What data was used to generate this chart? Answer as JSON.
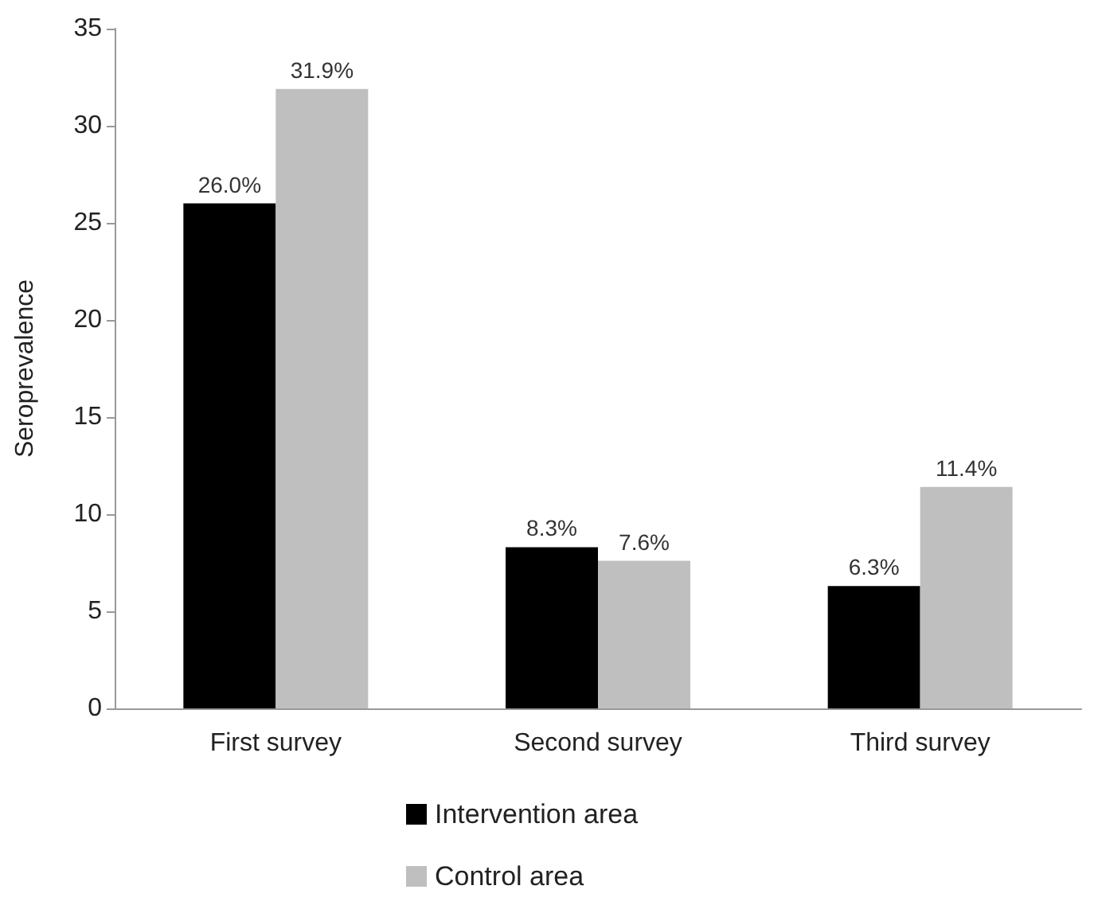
{
  "chart_data": {
    "type": "bar",
    "ylabel": "Seroprevalence",
    "categories": [
      "First survey",
      "Second survey",
      "Third survey"
    ],
    "series": [
      {
        "name": "Intervention area",
        "color": "#000000",
        "values": [
          26.0,
          8.3,
          6.3
        ],
        "value_labels": [
          "26.0%",
          "8.3%",
          "6.3%"
        ]
      },
      {
        "name": "Control area",
        "color": "#bfbfbf",
        "values": [
          31.9,
          7.6,
          11.4
        ],
        "value_labels": [
          "31.9%",
          "7.6%",
          "11.4%"
        ]
      }
    ],
    "ylim": [
      0,
      35
    ],
    "yticks": [
      0,
      5,
      10,
      15,
      20,
      25,
      30,
      35
    ],
    "grid": false,
    "legend": "bottom"
  }
}
